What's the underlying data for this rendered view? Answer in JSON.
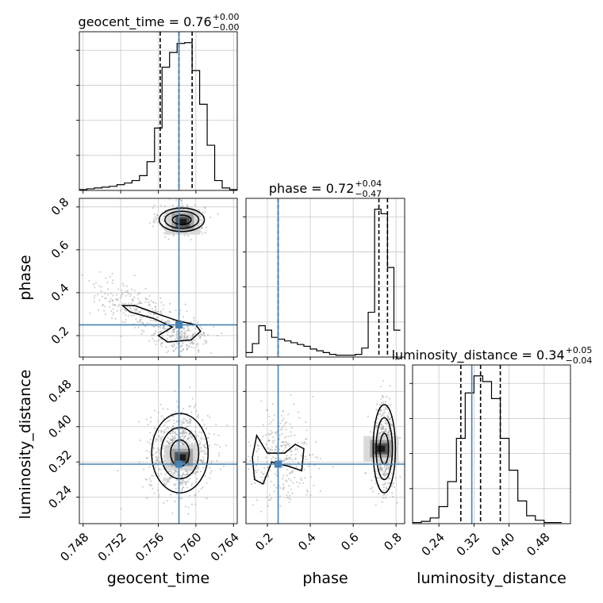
{
  "chart_data": {
    "type": "corner",
    "parameters": [
      "geocent_time",
      "phase",
      "luminosity_distance"
    ],
    "injection": {
      "geocent_time": 0.7582,
      "phase": 0.25,
      "luminosity_distance": 0.315
    },
    "colors": {
      "injection": "#4682b4",
      "hist": "#000000",
      "points": "#9a9a9a",
      "grid": "#c8c8c8"
    },
    "titles": [
      {
        "param": "geocent_time",
        "text": "geocent_time = 0.76",
        "plus": "+0.00",
        "minus": "−0.00"
      },
      {
        "param": "phase",
        "text": "phase = 0.72",
        "plus": "+0.04",
        "minus": "−0.47"
      },
      {
        "param": "luminosity_distance",
        "text": "luminosity_distance = 0.34",
        "plus": "+0.05",
        "minus": "−0.04"
      }
    ],
    "axes": {
      "geocent_time": {
        "range": [
          0.7476,
          0.7644
        ],
        "ticks": [
          0.748,
          0.752,
          0.756,
          0.76,
          0.764
        ],
        "tick_labels": [
          "0.748",
          "0.752",
          "0.756",
          "0.760",
          "0.764"
        ]
      },
      "phase": {
        "range": [
          0.1,
          0.84
        ],
        "ticks_x": [
          0.2,
          0.4,
          0.6,
          0.8
        ],
        "tick_labels_x": [
          "0.2",
          "0.4",
          "0.6",
          "0.8"
        ],
        "ticks_y": [
          0.2,
          0.4,
          0.6,
          0.8
        ],
        "tick_labels_y": [
          "0.2",
          "0.4",
          "0.6",
          "0.8"
        ]
      },
      "luminosity_distance": {
        "range": [
          0.18,
          0.54
        ],
        "ticks": [
          0.24,
          0.32,
          0.4,
          0.48
        ],
        "tick_labels": [
          "0.24",
          "0.32",
          "0.40",
          "0.48"
        ]
      }
    },
    "histograms": {
      "geocent_time": {
        "edges": [
          0.7476,
          0.7484,
          0.7492,
          0.75,
          0.7508,
          0.7516,
          0.7524,
          0.7532,
          0.754,
          0.7548,
          0.7556,
          0.7564,
          0.7572,
          0.758,
          0.7588,
          0.7596,
          0.7604,
          0.7612,
          0.762,
          0.7628,
          0.7636,
          0.7644
        ],
        "counts": [
          1,
          2,
          3,
          4,
          5,
          7,
          9,
          12,
          18,
          35,
          76,
          150,
          168,
          179,
          180,
          146,
          105,
          55,
          12,
          3,
          1
        ],
        "quantiles": [
          0.7562,
          0.7582,
          0.7596
        ]
      },
      "phase": {
        "edges": [
          0.1,
          0.13,
          0.16,
          0.19,
          0.22,
          0.25,
          0.28,
          0.31,
          0.34,
          0.37,
          0.4,
          0.43,
          0.46,
          0.49,
          0.52,
          0.55,
          0.58,
          0.61,
          0.64,
          0.67,
          0.7,
          0.73,
          0.76,
          0.79,
          0.82
        ],
        "counts": [
          5,
          15,
          35,
          30,
          22,
          20,
          18,
          16,
          14,
          12,
          9,
          7,
          5,
          3,
          2,
          2,
          2,
          3,
          10,
          50,
          165,
          160,
          100,
          30
        ],
        "quantiles": [
          0.25,
          0.72,
          0.76
        ]
      },
      "luminosity_distance": {
        "edges": [
          0.18,
          0.2,
          0.22,
          0.24,
          0.26,
          0.28,
          0.3,
          0.32,
          0.34,
          0.36,
          0.38,
          0.4,
          0.42,
          0.44,
          0.46,
          0.48,
          0.5,
          0.52
        ],
        "counts": [
          1,
          2,
          5,
          15,
          37,
          75,
          115,
          130,
          125,
          110,
          75,
          47,
          20,
          7,
          3,
          1,
          1
        ],
        "quantiles": [
          0.29,
          0.335,
          0.38
        ]
      }
    },
    "scatter_clusters": [
      {
        "x": "geocent_time",
        "y": "phase",
        "center": [
          0.7585,
          0.74
        ],
        "sd": [
          0.0012,
          0.035
        ],
        "n": 450,
        "rot": 0
      },
      {
        "x": "geocent_time",
        "y": "phase",
        "center": [
          0.754,
          0.32
        ],
        "sd": [
          0.003,
          0.045
        ],
        "n": 260,
        "rot": -25
      },
      {
        "x": "geocent_time",
        "y": "phase",
        "center": [
          0.7585,
          0.2
        ],
        "sd": [
          0.0015,
          0.04
        ],
        "n": 200,
        "rot": 0
      },
      {
        "x": "geocent_time",
        "y": "luminosity_distance",
        "center": [
          0.7583,
          0.34
        ],
        "sd": [
          0.0016,
          0.045
        ],
        "n": 800,
        "rot": 0
      },
      {
        "x": "phase",
        "y": "luminosity_distance",
        "center": [
          0.745,
          0.35
        ],
        "sd": [
          0.028,
          0.055
        ],
        "n": 480,
        "rot": 0
      },
      {
        "x": "phase",
        "y": "luminosity_distance",
        "center": [
          0.27,
          0.33
        ],
        "sd": [
          0.075,
          0.05
        ],
        "n": 300,
        "rot": 0
      }
    ],
    "contours": [
      {
        "x": "geocent_time",
        "y": "phase",
        "center": [
          0.7585,
          0.74
        ],
        "rx": [
          0.001,
          0.0018,
          0.0024
        ],
        "ry": [
          0.022,
          0.04,
          0.055
        ]
      },
      {
        "x": "phase",
        "y": "luminosity_distance",
        "center": [
          0.745,
          0.35
        ],
        "rx": [
          0.02,
          0.038,
          0.052
        ],
        "ry": [
          0.035,
          0.07,
          0.1
        ]
      },
      {
        "x": "geocent_time",
        "y": "luminosity_distance",
        "center": [
          0.7583,
          0.34
        ],
        "rx": [
          0.001,
          0.002,
          0.003
        ],
        "ry": [
          0.03,
          0.058,
          0.09
        ]
      }
    ],
    "hotspots": [
      {
        "x": "geocent_time",
        "y": "phase",
        "center": [
          0.7586,
          0.73
        ]
      },
      {
        "x": "geocent_time",
        "y": "luminosity_distance",
        "center": [
          0.7585,
          0.33
        ]
      },
      {
        "x": "phase",
        "y": "luminosity_distance",
        "center": [
          0.73,
          0.35
        ]
      }
    ]
  }
}
